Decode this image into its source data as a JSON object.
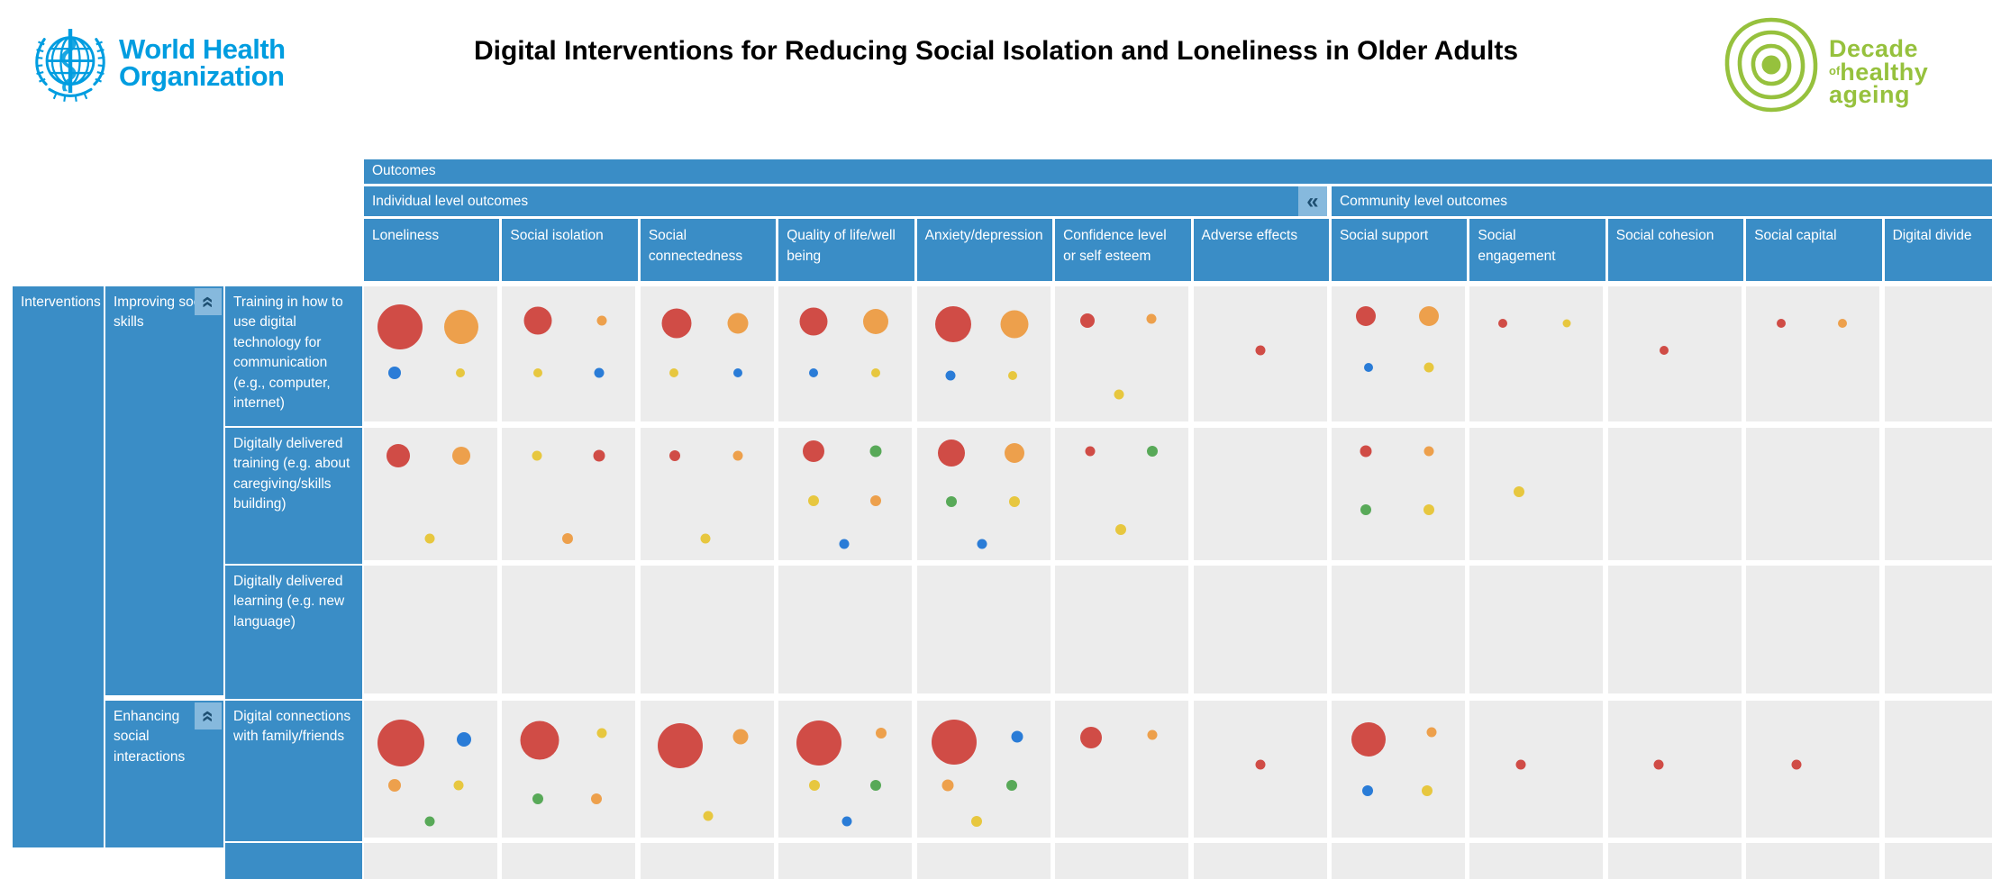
{
  "header": {
    "who": {
      "line1": "World Health",
      "line2": "Organization"
    },
    "title": "Digital Interventions for Reducing Social Isolation and Loneliness in Older Adults",
    "decade": {
      "line1": "Decade",
      "of": "of",
      "line2": "healthy",
      "line3": "ageing"
    }
  },
  "matrix": {
    "outcomes_label": "Outcomes",
    "interventions_label": "Interventions",
    "collapse_icon": "«",
    "sections": [
      {
        "label": "Individual level outcomes",
        "first_col": 0,
        "last_col": 6,
        "has_collapse": true
      },
      {
        "label": "Community level outcomes",
        "first_col": 7,
        "last_col": 11,
        "has_collapse": false
      }
    ],
    "row_groups": [
      {
        "label": "Improving social skills",
        "first_row": 0,
        "last_row": 2
      },
      {
        "label": "Enhancing social interactions",
        "first_row": 3,
        "last_row": 3
      }
    ]
  },
  "colors": {
    "header_blue": "#3a8dc6",
    "cell_gray": "#ececec",
    "who_blue": "#009de0",
    "decade_green": "#96c13d",
    "collapse_bg": "#86b9dd",
    "collapse_glyph": "#1d4f72"
  },
  "chart_data": {
    "type": "bubble-matrix",
    "title": "Digital Interventions for Reducing Social Isolation and Loneliness in Older Adults",
    "legend": "bubble size = volume of evidence; bubble color = evidence category (red, orange, yellow, blue, green)",
    "bubble_colors": {
      "red": "#d04c46",
      "orange": "#eda04c",
      "yellow": "#e7c73f",
      "blue": "#2a7cd7",
      "green": "#58a958"
    },
    "columns": [
      "Loneliness",
      "Social isolation",
      "Social connectedness",
      "Quality of life/well being",
      "Anxiety/depression",
      "Confidence level or self esteem",
      "Adverse effects",
      "Social support",
      "Social engagement",
      "Social cohesion",
      "Social capital",
      "Digital divide"
    ],
    "rows": [
      "Training in how to use digital technology for communication (e.g., computer, internet)",
      "Digitally delivered training (e.g. about caregiving/skills building)",
      "Digitally delivered learning (e.g. new language)",
      "Digital connections with family/friends"
    ],
    "cells": [
      [
        [
          [
            "red",
            50,
            27,
            30
          ],
          [
            "orange",
            38,
            73,
            30
          ],
          [
            "blue",
            14,
            23,
            64
          ],
          [
            "yellow",
            10,
            72,
            64
          ]
        ],
        [
          [
            "red",
            31,
            27,
            25
          ],
          [
            "orange",
            11,
            75,
            25
          ],
          [
            "yellow",
            10,
            27,
            64
          ],
          [
            "blue",
            11,
            73,
            64
          ]
        ],
        [
          [
            "red",
            33,
            27,
            27
          ],
          [
            "orange",
            23,
            73,
            27
          ],
          [
            "yellow",
            10,
            25,
            64
          ],
          [
            "blue",
            10,
            73,
            64
          ]
        ],
        [
          [
            "red",
            31,
            26,
            26
          ],
          [
            "orange",
            28,
            73,
            26
          ],
          [
            "blue",
            10,
            26,
            64
          ],
          [
            "yellow",
            10,
            73,
            64
          ]
        ],
        [
          [
            "red",
            40,
            27,
            28
          ],
          [
            "orange",
            31,
            73,
            28
          ],
          [
            "blue",
            11,
            25,
            66
          ],
          [
            "yellow",
            10,
            72,
            66
          ]
        ],
        [
          [
            "red",
            16,
            24,
            25
          ],
          [
            "orange",
            11,
            72,
            24
          ],
          [
            "yellow",
            11,
            48,
            80
          ]
        ],
        [
          [
            "red",
            11,
            50,
            47
          ]
        ],
        [
          [
            "red",
            22,
            26,
            22
          ],
          [
            "orange",
            22,
            73,
            22
          ],
          [
            "blue",
            10,
            28,
            60
          ],
          [
            "yellow",
            11,
            73,
            60
          ]
        ],
        [
          [
            "red",
            10,
            25,
            27
          ],
          [
            "yellow",
            9,
            73,
            27
          ]
        ],
        [
          [
            "red",
            10,
            42,
            47
          ]
        ],
        [
          [
            "red",
            10,
            26,
            27
          ],
          [
            "orange",
            10,
            72,
            27
          ]
        ],
        []
      ],
      [
        [
          [
            "red",
            26,
            26,
            21
          ],
          [
            "orange",
            20,
            73,
            21
          ],
          [
            "yellow",
            11,
            49,
            84
          ]
        ],
        [
          [
            "yellow",
            11,
            26,
            21
          ],
          [
            "red",
            13,
            73,
            21
          ],
          [
            "orange",
            12,
            49,
            84
          ]
        ],
        [
          [
            "red",
            12,
            26,
            21
          ],
          [
            "orange",
            11,
            73,
            21
          ],
          [
            "yellow",
            11,
            49,
            84
          ]
        ],
        [
          [
            "red",
            24,
            26,
            18
          ],
          [
            "green",
            13,
            73,
            18
          ],
          [
            "yellow",
            12,
            26,
            55
          ],
          [
            "orange",
            12,
            73,
            55
          ],
          [
            "blue",
            11,
            49,
            88
          ]
        ],
        [
          [
            "red",
            30,
            26,
            19
          ],
          [
            "orange",
            22,
            73,
            19
          ],
          [
            "green",
            12,
            26,
            56
          ],
          [
            "yellow",
            12,
            73,
            56
          ],
          [
            "blue",
            11,
            49,
            88
          ]
        ],
        [
          [
            "red",
            11,
            26,
            18
          ],
          [
            "green",
            12,
            73,
            18
          ],
          [
            "yellow",
            12,
            49,
            77
          ]
        ],
        [],
        [
          [
            "red",
            13,
            26,
            18
          ],
          [
            "orange",
            11,
            73,
            18
          ],
          [
            "green",
            12,
            26,
            62
          ],
          [
            "yellow",
            12,
            73,
            62
          ]
        ],
        [
          [
            "yellow",
            12,
            37,
            48
          ]
        ],
        [],
        [],
        []
      ],
      [
        [],
        [],
        [],
        [],
        [],
        [],
        [],
        [],
        [],
        [],
        [],
        []
      ],
      [
        [
          [
            "red",
            52,
            28,
            31
          ],
          [
            "blue",
            16,
            75,
            28
          ],
          [
            "orange",
            14,
            23,
            62
          ],
          [
            "yellow",
            11,
            71,
            62
          ],
          [
            "green",
            11,
            49,
            88
          ]
        ],
        [
          [
            "red",
            43,
            28,
            29
          ],
          [
            "yellow",
            11,
            75,
            24
          ],
          [
            "green",
            12,
            27,
            72
          ],
          [
            "orange",
            12,
            71,
            72
          ]
        ],
        [
          [
            "red",
            50,
            30,
            33
          ],
          [
            "orange",
            17,
            75,
            26
          ],
          [
            "yellow",
            11,
            51,
            84
          ]
        ],
        [
          [
            "red",
            50,
            30,
            31
          ],
          [
            "orange",
            12,
            77,
            24
          ],
          [
            "yellow",
            12,
            27,
            62
          ],
          [
            "green",
            12,
            73,
            62
          ],
          [
            "blue",
            11,
            51,
            88
          ]
        ],
        [
          [
            "red",
            50,
            28,
            30
          ],
          [
            "blue",
            13,
            75,
            26
          ],
          [
            "orange",
            13,
            23,
            62
          ],
          [
            "green",
            12,
            71,
            62
          ],
          [
            "yellow",
            12,
            45,
            88
          ]
        ],
        [
          [
            "red",
            24,
            27,
            27
          ],
          [
            "orange",
            11,
            73,
            25
          ]
        ],
        [
          [
            "red",
            11,
            50,
            47
          ]
        ],
        [
          [
            "red",
            38,
            28,
            28
          ],
          [
            "orange",
            11,
            75,
            23
          ],
          [
            "blue",
            12,
            27,
            66
          ],
          [
            "yellow",
            12,
            72,
            66
          ]
        ],
        [
          [
            "red",
            11,
            38,
            47
          ]
        ],
        [
          [
            "red",
            11,
            38,
            47
          ]
        ],
        [
          [
            "red",
            11,
            38,
            47
          ]
        ],
        []
      ]
    ]
  }
}
